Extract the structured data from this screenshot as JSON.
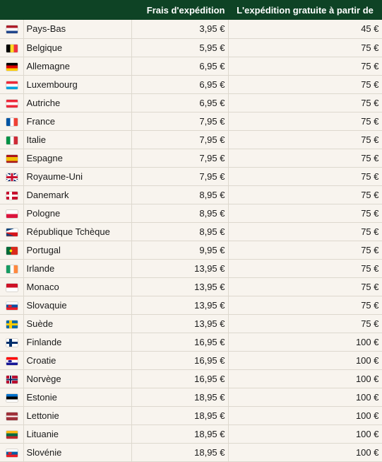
{
  "header": {
    "shipping_cost": "Frais d'expédition",
    "free_shipping_from": "L'expédition gratuite à partir de"
  },
  "rows": [
    {
      "country": "Pays-Bas",
      "cost": "3,95 €",
      "free": "45 €",
      "flag": "nl",
      "flag_colors": [
        "#AE1C28",
        "#FFFFFF",
        "#21468B"
      ]
    },
    {
      "country": "Belgique",
      "cost": "5,95 €",
      "free": "75 €",
      "flag": "be",
      "flag_colors": [
        "#000000",
        "#FDDA24",
        "#EF3340"
      ]
    },
    {
      "country": "Allemagne",
      "cost": "6,95 €",
      "free": "75 €",
      "flag": "de",
      "flag_colors": [
        "#000000",
        "#DD0000",
        "#FFCE00"
      ]
    },
    {
      "country": "Luxembourg",
      "cost": "6,95 €",
      "free": "75 €",
      "flag": "lu",
      "flag_colors": [
        "#ED2939",
        "#FFFFFF",
        "#00A1DE"
      ]
    },
    {
      "country": "Autriche",
      "cost": "6,95 €",
      "free": "75 €",
      "flag": "at",
      "flag_colors": [
        "#ED2939",
        "#FFFFFF",
        "#ED2939"
      ]
    },
    {
      "country": "France",
      "cost": "7,95 €",
      "free": "75 €",
      "flag": "fr",
      "flag_colors": [
        "#0055A4",
        "#FFFFFF",
        "#EF4135"
      ]
    },
    {
      "country": "Italie",
      "cost": "7,95 €",
      "free": "75 €",
      "flag": "it",
      "flag_colors": [
        "#009246",
        "#FFFFFF",
        "#CE2B37"
      ]
    },
    {
      "country": "Espagne",
      "cost": "7,95 €",
      "free": "75 €",
      "flag": "es",
      "flag_colors": [
        "#AA151B",
        "#F1BF00",
        "#AA151B"
      ]
    },
    {
      "country": "Royaume-Uni",
      "cost": "7,95 €",
      "free": "75 €",
      "flag": "uk",
      "flag_colors": [
        "#012169",
        "#FFFFFF",
        "#C8102E"
      ]
    },
    {
      "country": "Danemark",
      "cost": "8,95 €",
      "free": "75 €",
      "flag": "dk",
      "flag_colors": [
        "#C8102E",
        "#FFFFFF"
      ]
    },
    {
      "country": "Pologne",
      "cost": "8,95 €",
      "free": "75 €",
      "flag": "pl",
      "flag_colors": [
        "#FFFFFF",
        "#DC143C"
      ]
    },
    {
      "country": "République Tchèque",
      "cost": "8,95 €",
      "free": "75 €",
      "flag": "cz",
      "flag_colors": [
        "#FFFFFF",
        "#D7141A",
        "#11457E"
      ]
    },
    {
      "country": "Portugal",
      "cost": "9,95 €",
      "free": "75 €",
      "flag": "pt",
      "flag_colors": [
        "#046A38",
        "#DA291C",
        "#FFE900"
      ]
    },
    {
      "country": "Irlande",
      "cost": "13,95 €",
      "free": "75 €",
      "flag": "ie",
      "flag_colors": [
        "#169B62",
        "#FFFFFF",
        "#FF883E"
      ]
    },
    {
      "country": "Monaco",
      "cost": "13,95 €",
      "free": "75 €",
      "flag": "mc",
      "flag_colors": [
        "#CE1126",
        "#FFFFFF"
      ]
    },
    {
      "country": "Slovaquie",
      "cost": "13,95 €",
      "free": "75 €",
      "flag": "sk",
      "flag_colors": [
        "#FFFFFF",
        "#0B4EA2",
        "#EE1C25"
      ]
    },
    {
      "country": "Suède",
      "cost": "13,95 €",
      "free": "75 €",
      "flag": "se",
      "flag_colors": [
        "#006AA7",
        "#FECC00"
      ]
    },
    {
      "country": "Finlande",
      "cost": "16,95 €",
      "free": "100 €",
      "flag": "fi",
      "flag_colors": [
        "#FFFFFF",
        "#002F6C"
      ]
    },
    {
      "country": "Croatie",
      "cost": "16,95 €",
      "free": "100 €",
      "flag": "hr",
      "flag_colors": [
        "#FF0000",
        "#FFFFFF",
        "#171796"
      ]
    },
    {
      "country": "Norvège",
      "cost": "16,95 €",
      "free": "100 €",
      "flag": "no",
      "flag_colors": [
        "#BA0C2F",
        "#FFFFFF",
        "#00205B"
      ]
    },
    {
      "country": "Estonie",
      "cost": "18,95 €",
      "free": "100 €",
      "flag": "ee",
      "flag_colors": [
        "#0072CE",
        "#000000",
        "#FFFFFF"
      ]
    },
    {
      "country": "Lettonie",
      "cost": "18,95 €",
      "free": "100 €",
      "flag": "lv",
      "flag_colors": [
        "#9E3039",
        "#FFFFFF",
        "#9E3039"
      ]
    },
    {
      "country": "Lituanie",
      "cost": "18,95 €",
      "free": "100 €",
      "flag": "lt",
      "flag_colors": [
        "#FDB913",
        "#006A44",
        "#C1272D"
      ]
    },
    {
      "country": "Slovénie",
      "cost": "18,95 €",
      "free": "100 €",
      "flag": "si",
      "flag_colors": [
        "#FFFFFF",
        "#005DA4",
        "#ED1C24"
      ]
    }
  ],
  "colors": {
    "header_bg": "#0E4325",
    "header_text": "#FFFFFF",
    "row_bg": "#F8F4EE",
    "divider": "#0E4325",
    "cell_border": "#DDD8CE"
  }
}
